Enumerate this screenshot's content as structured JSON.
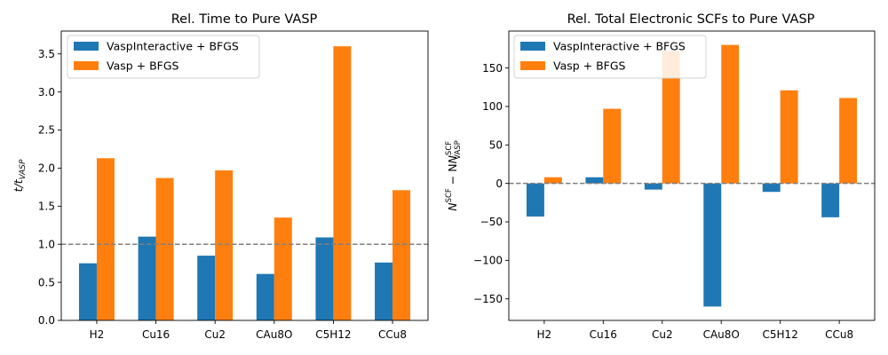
{
  "colors": {
    "series_a": "#1f77b4",
    "series_b": "#ff7f0e",
    "refline": "#808080"
  },
  "chart_data": [
    {
      "type": "bar",
      "title": "Rel. Time to Pure VASP",
      "xlabel": "",
      "ylabel_main": "t/t",
      "ylabel_sub": "VASP",
      "categories": [
        "H2",
        "Cu16",
        "Cu2",
        "CAu8O",
        "C5H12",
        "CCu8"
      ],
      "series": [
        {
          "name": "VaspInteractive + BFGS",
          "values": [
            0.75,
            1.1,
            0.85,
            0.61,
            1.09,
            0.76
          ]
        },
        {
          "name": "Vasp + BFGS",
          "values": [
            2.13,
            1.87,
            1.97,
            1.35,
            3.6,
            1.71
          ]
        }
      ],
      "reference_line": 1.0,
      "ylim": [
        0,
        3.8
      ],
      "yticks": [
        0.0,
        0.5,
        1.0,
        1.5,
        2.0,
        2.5,
        3.0,
        3.5
      ],
      "ytick_labels": [
        "0.0",
        "0.5",
        "1.0",
        "1.5",
        "2.0",
        "2.5",
        "3.0",
        "3.5"
      ],
      "legend": "top-left",
      "grid": false
    },
    {
      "type": "bar",
      "title": "Rel. Total Electronic SCFs to Pure VASP",
      "xlabel": "",
      "ylabel_main": "N",
      "ylabel_sup1": "SCF",
      "ylabel_minus": " − N",
      "ylabel_sup2": "SCF",
      "ylabel_sub2": "VASP",
      "categories": [
        "H2",
        "Cu16",
        "Cu2",
        "CAu8O",
        "C5H12",
        "CCu8"
      ],
      "series": [
        {
          "name": "VaspInteractive + BFGS",
          "values": [
            -43,
            8,
            -8,
            -160,
            -11,
            -44
          ]
        },
        {
          "name": "Vasp + BFGS",
          "values": [
            8,
            97,
            172,
            180,
            121,
            111
          ]
        }
      ],
      "reference_line": 0,
      "ylim": [
        -178,
        198
      ],
      "yticks": [
        -150,
        -100,
        -50,
        0,
        50,
        100,
        150
      ],
      "ytick_labels": [
        "−150",
        "−100",
        "−50",
        "0",
        "50",
        "100",
        "150"
      ],
      "legend": "top-left",
      "grid": false
    }
  ]
}
